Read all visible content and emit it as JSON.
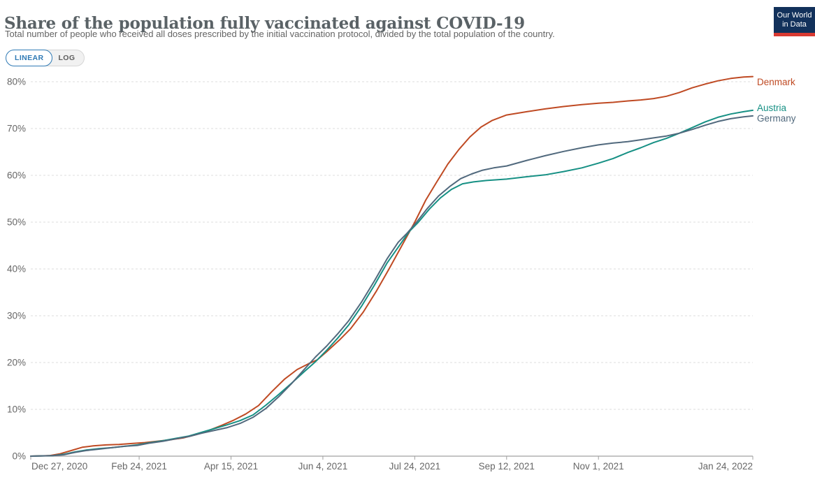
{
  "header": {
    "title": "Share of the population fully vaccinated against COVID-19",
    "subtitle": "Total number of people who received all doses prescribed by the initial vaccination protocol, divided by the total population of the country."
  },
  "toolbar": {
    "linear_label": "LINEAR",
    "log_label": "LOG",
    "active": "LINEAR",
    "accent_color": "#2f7ab5"
  },
  "logo": {
    "line1": "Our World",
    "line2": "in Data",
    "bg_color": "#12315b",
    "bar_color": "#d93a32"
  },
  "chart_data": {
    "type": "line",
    "title": "Share of the population fully vaccinated against COVID-19",
    "xlabel": "",
    "ylabel": "",
    "grid": "horizontal-dashed",
    "legend_position": "right-end-of-line",
    "y_axis": {
      "min": 0,
      "max": 80,
      "step": 10,
      "tick_suffix": "%",
      "tick_labels": [
        "0%",
        "10%",
        "20%",
        "30%",
        "40%",
        "50%",
        "60%",
        "70%",
        "80%"
      ]
    },
    "x_axis": {
      "unit": "date",
      "range_days": [
        0,
        393
      ],
      "ticks": [
        {
          "label": "Dec 27, 2020",
          "day": 0
        },
        {
          "label": "Feb 24, 2021",
          "day": 59
        },
        {
          "label": "Apr 15, 2021",
          "day": 109
        },
        {
          "label": "Jun 4, 2021",
          "day": 159
        },
        {
          "label": "Jul 24, 2021",
          "day": 209
        },
        {
          "label": "Sep 12, 2021",
          "day": 259
        },
        {
          "label": "Nov 1, 2021",
          "day": 309
        },
        {
          "label": "Jan 24, 2022",
          "day": 393
        }
      ]
    },
    "series": [
      {
        "name": "Denmark",
        "color": "#bf4a23",
        "points": [
          [
            0,
            0
          ],
          [
            10,
            0.1
          ],
          [
            16,
            0.5
          ],
          [
            22,
            1.2
          ],
          [
            28,
            1.9
          ],
          [
            34,
            2.2
          ],
          [
            41,
            2.4
          ],
          [
            48,
            2.5
          ],
          [
            55,
            2.7
          ],
          [
            62,
            2.9
          ],
          [
            69,
            3.2
          ],
          [
            76,
            3.5
          ],
          [
            83,
            3.9
          ],
          [
            90,
            4.6
          ],
          [
            97,
            5.5
          ],
          [
            104,
            6.6
          ],
          [
            110,
            7.6
          ],
          [
            117,
            9
          ],
          [
            124,
            10.8
          ],
          [
            131,
            13.7
          ],
          [
            138,
            16.4
          ],
          [
            145,
            18.5
          ],
          [
            151,
            19.7
          ],
          [
            156,
            20.6
          ],
          [
            161,
            22.3
          ],
          [
            168,
            24.8
          ],
          [
            174,
            27.2
          ],
          [
            181,
            30.8
          ],
          [
            188,
            35.2
          ],
          [
            195,
            40
          ],
          [
            202,
            45
          ],
          [
            209,
            50
          ],
          [
            215,
            54.7
          ],
          [
            221,
            58.6
          ],
          [
            227,
            62.4
          ],
          [
            233,
            65.5
          ],
          [
            239,
            68.2
          ],
          [
            245,
            70.3
          ],
          [
            251,
            71.7
          ],
          [
            259,
            72.9
          ],
          [
            270,
            73.6
          ],
          [
            280,
            74.2
          ],
          [
            290,
            74.7
          ],
          [
            300,
            75.1
          ],
          [
            309,
            75.4
          ],
          [
            317,
            75.6
          ],
          [
            325,
            75.9
          ],
          [
            332,
            76.1
          ],
          [
            339,
            76.4
          ],
          [
            346,
            76.9
          ],
          [
            353,
            77.7
          ],
          [
            360,
            78.7
          ],
          [
            367,
            79.5
          ],
          [
            374,
            80.2
          ],
          [
            381,
            80.7
          ],
          [
            388,
            81
          ],
          [
            393,
            81.1
          ]
        ]
      },
      {
        "name": "Austria",
        "color": "#169084",
        "points": [
          [
            0,
            0
          ],
          [
            12,
            0.1
          ],
          [
            18,
            0.4
          ],
          [
            24,
            0.9
          ],
          [
            30,
            1.3
          ],
          [
            37,
            1.6
          ],
          [
            44,
            1.8
          ],
          [
            51,
            2.1
          ],
          [
            58,
            2.4
          ],
          [
            65,
            2.9
          ],
          [
            72,
            3.3
          ],
          [
            79,
            3.8
          ],
          [
            86,
            4.3
          ],
          [
            93,
            5.1
          ],
          [
            100,
            5.9
          ],
          [
            107,
            6.7
          ],
          [
            114,
            7.6
          ],
          [
            121,
            8.8
          ],
          [
            128,
            10.9
          ],
          [
            135,
            13.2
          ],
          [
            142,
            15.6
          ],
          [
            149,
            18.1
          ],
          [
            155,
            20.2
          ],
          [
            161,
            22.6
          ],
          [
            167,
            25.2
          ],
          [
            173,
            28
          ],
          [
            180,
            32
          ],
          [
            187,
            36.5
          ],
          [
            194,
            41.3
          ],
          [
            201,
            45.2
          ],
          [
            206,
            48
          ],
          [
            211,
            50
          ],
          [
            217,
            52.8
          ],
          [
            223,
            55.2
          ],
          [
            229,
            57
          ],
          [
            235,
            58.2
          ],
          [
            241,
            58.6
          ],
          [
            248,
            58.9
          ],
          [
            259,
            59.2
          ],
          [
            270,
            59.7
          ],
          [
            280,
            60.1
          ],
          [
            290,
            60.8
          ],
          [
            300,
            61.6
          ],
          [
            309,
            62.6
          ],
          [
            317,
            63.6
          ],
          [
            325,
            64.9
          ],
          [
            332,
            65.9
          ],
          [
            339,
            67
          ],
          [
            346,
            67.9
          ],
          [
            353,
            69
          ],
          [
            360,
            70.2
          ],
          [
            367,
            71.4
          ],
          [
            374,
            72.4
          ],
          [
            381,
            73.1
          ],
          [
            388,
            73.6
          ],
          [
            393,
            73.9
          ]
        ]
      },
      {
        "name": "Germany",
        "color": "#51697d",
        "points": [
          [
            0,
            0
          ],
          [
            12,
            0.1
          ],
          [
            18,
            0.3
          ],
          [
            24,
            0.8
          ],
          [
            30,
            1.2
          ],
          [
            37,
            1.5
          ],
          [
            44,
            1.8
          ],
          [
            51,
            2.1
          ],
          [
            58,
            2.3
          ],
          [
            65,
            2.8
          ],
          [
            72,
            3.2
          ],
          [
            79,
            3.7
          ],
          [
            86,
            4.2
          ],
          [
            93,
            4.9
          ],
          [
            100,
            5.5
          ],
          [
            107,
            6.1
          ],
          [
            114,
            7
          ],
          [
            121,
            8.3
          ],
          [
            128,
            10.2
          ],
          [
            135,
            12.7
          ],
          [
            142,
            15.5
          ],
          [
            149,
            18.6
          ],
          [
            155,
            21.2
          ],
          [
            161,
            23.5
          ],
          [
            167,
            26.1
          ],
          [
            173,
            28.9
          ],
          [
            180,
            32.9
          ],
          [
            187,
            37.4
          ],
          [
            194,
            42.2
          ],
          [
            200,
            45.7
          ],
          [
            205,
            47.7
          ],
          [
            210,
            50
          ],
          [
            216,
            53
          ],
          [
            222,
            55.6
          ],
          [
            228,
            57.6
          ],
          [
            234,
            59.3
          ],
          [
            240,
            60.3
          ],
          [
            246,
            61.1
          ],
          [
            252,
            61.6
          ],
          [
            259,
            62
          ],
          [
            270,
            63.2
          ],
          [
            280,
            64.2
          ],
          [
            290,
            65.1
          ],
          [
            300,
            65.9
          ],
          [
            309,
            66.5
          ],
          [
            317,
            66.9
          ],
          [
            325,
            67.2
          ],
          [
            332,
            67.6
          ],
          [
            339,
            68
          ],
          [
            346,
            68.4
          ],
          [
            353,
            69
          ],
          [
            360,
            69.8
          ],
          [
            367,
            70.7
          ],
          [
            374,
            71.5
          ],
          [
            381,
            72.1
          ],
          [
            388,
            72.5
          ],
          [
            393,
            72.7
          ]
        ]
      }
    ]
  }
}
